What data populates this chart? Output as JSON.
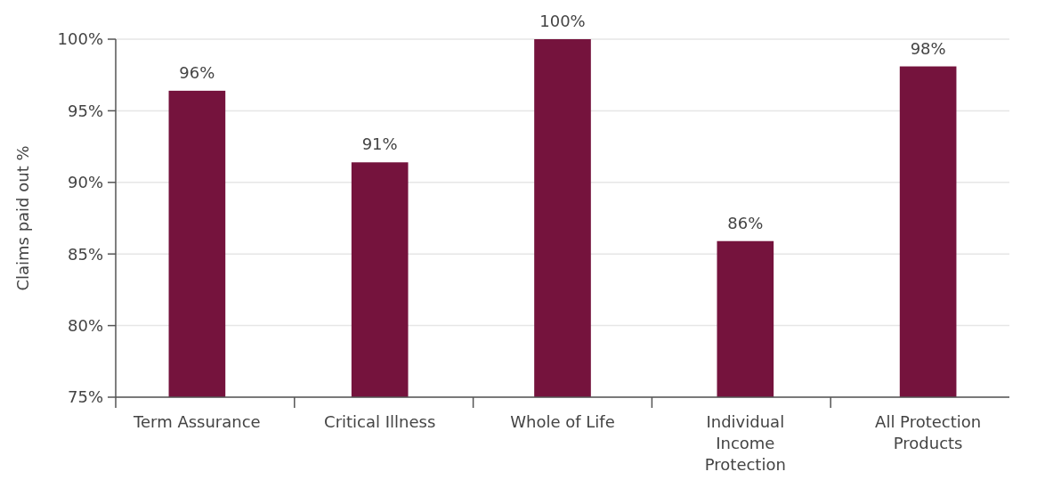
{
  "chart_data": {
    "type": "bar",
    "ylabel": "Claims paid out %",
    "categories": [
      "Term Assurance",
      "Critical Illness",
      "Whole of Life",
      "Individual Income Protection",
      "All Protection Products"
    ],
    "values": [
      96.4,
      91.4,
      100,
      85.9,
      98.1
    ],
    "value_labels": [
      "96%",
      "91%",
      "100%",
      "86%",
      "98%"
    ],
    "color": "#75133d",
    "ylim": [
      75,
      100
    ],
    "yticks": [
      {
        "value": 75,
        "label": "75%"
      },
      {
        "value": 80,
        "label": "80%"
      },
      {
        "value": 85,
        "label": "85%"
      },
      {
        "value": 90,
        "label": "90%"
      },
      {
        "value": 95,
        "label": "95%"
      },
      {
        "value": 100,
        "label": "100%"
      }
    ],
    "grid": "y"
  }
}
